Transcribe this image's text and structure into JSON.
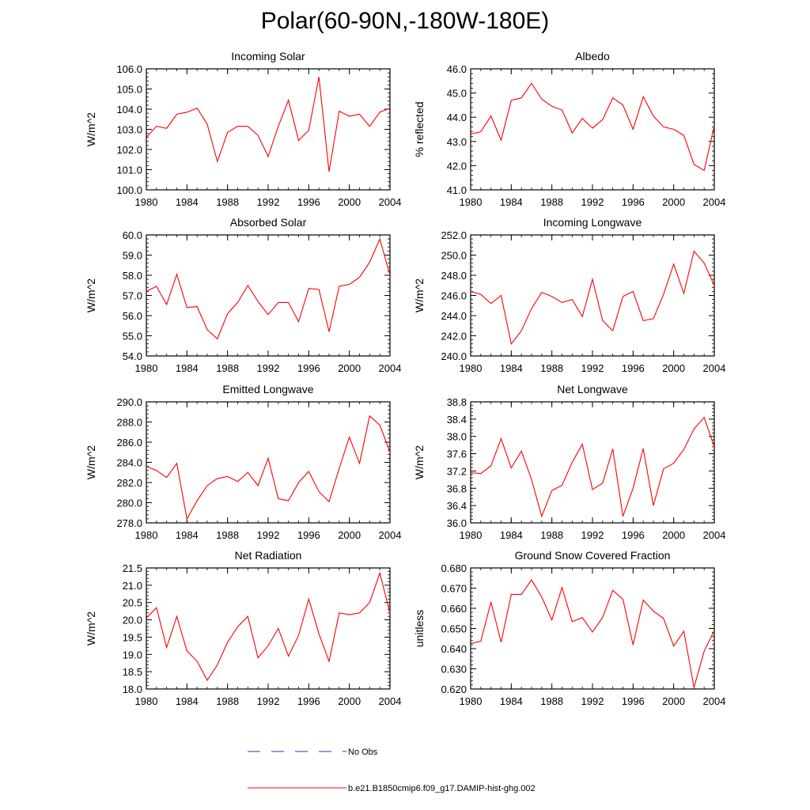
{
  "title": "Polar(60-90N,-180W-180E)",
  "colors": {
    "model": "#ff0000",
    "obs": "#3333aa",
    "axis": "#000000"
  },
  "legend": {
    "items": [
      {
        "label": "No Obs",
        "style": "dashed",
        "color": "#3333aa"
      },
      {
        "label": "b.e21.B1850cmip6.f09_g17.DAMIP-hist-ghg.002",
        "style": "solid",
        "color": "#ff0000"
      }
    ]
  },
  "chart_data": [
    {
      "type": "line",
      "title": "Incoming Solar",
      "xlabel": "",
      "ylabel": "W/m^2",
      "xlim": [
        1980,
        2004
      ],
      "ylim": [
        100,
        106
      ],
      "decimals": 1,
      "xticks": [
        1980,
        1984,
        1988,
        1992,
        1996,
        2000,
        2004
      ],
      "yticks": [
        100,
        101,
        102,
        103,
        104,
        105,
        106
      ],
      "x": [
        1980,
        1981,
        1982,
        1983,
        1984,
        1985,
        1986,
        1987,
        1988,
        1989,
        1990,
        1991,
        1992,
        1993,
        1994,
        1995,
        1996,
        1997,
        1998,
        1999,
        2000,
        2001,
        2002,
        2003,
        2004
      ],
      "series": [
        {
          "name": "b.e21.B1850cmip6.f09_g17.DAMIP-hist-ghg.002",
          "values": [
            102.6,
            103.15,
            103.05,
            103.75,
            103.85,
            104.05,
            103.25,
            101.4,
            102.85,
            103.15,
            103.15,
            102.7,
            101.65,
            103.15,
            104.45,
            102.45,
            102.95,
            105.6,
            100.9,
            103.9,
            103.65,
            103.75,
            103.15,
            103.85,
            104.05
          ]
        }
      ]
    },
    {
      "type": "line",
      "title": "Albedo",
      "xlabel": "",
      "ylabel": "% reflected",
      "xlim": [
        1980,
        2004
      ],
      "ylim": [
        41,
        46
      ],
      "decimals": 1,
      "xticks": [
        1980,
        1984,
        1988,
        1992,
        1996,
        2000,
        2004
      ],
      "yticks": [
        41,
        42,
        43,
        44,
        45,
        46
      ],
      "x": [
        1980,
        1981,
        1982,
        1983,
        1984,
        1985,
        1986,
        1987,
        1988,
        1989,
        1990,
        1991,
        1992,
        1993,
        1994,
        1995,
        1996,
        1997,
        1998,
        1999,
        2000,
        2001,
        2002,
        2003,
        2004
      ],
      "series": [
        {
          "name": "b.e21.B1850cmip6.f09_g17.DAMIP-hist-ghg.002",
          "values": [
            43.3,
            43.4,
            44.05,
            43.05,
            44.7,
            44.8,
            45.4,
            44.75,
            44.45,
            44.3,
            43.35,
            43.95,
            43.55,
            43.9,
            44.8,
            44.5,
            43.5,
            44.85,
            44.05,
            43.6,
            43.5,
            43.25,
            42.05,
            41.8,
            43.65
          ]
        }
      ]
    },
    {
      "type": "line",
      "title": "Absorbed Solar",
      "xlabel": "",
      "ylabel": "W/m^2",
      "xlim": [
        1980,
        2004
      ],
      "ylim": [
        54,
        60
      ],
      "decimals": 1,
      "xticks": [
        1980,
        1984,
        1988,
        1992,
        1996,
        2000,
        2004
      ],
      "yticks": [
        54,
        55,
        56,
        57,
        58,
        59,
        60
      ],
      "x": [
        1980,
        1981,
        1982,
        1983,
        1984,
        1985,
        1986,
        1987,
        1988,
        1989,
        1990,
        1991,
        1992,
        1993,
        1994,
        1995,
        1996,
        1997,
        1998,
        1999,
        2000,
        2001,
        2002,
        2003,
        2004
      ],
      "series": [
        {
          "name": "b.e21.B1850cmip6.f09_g17.DAMIP-hist-ghg.002",
          "values": [
            57.2,
            57.45,
            56.55,
            58.05,
            56.4,
            56.45,
            55.3,
            54.85,
            56.1,
            56.65,
            57.5,
            56.7,
            56.05,
            56.65,
            56.65,
            55.7,
            57.35,
            57.3,
            55.2,
            57.45,
            57.55,
            57.9,
            58.65,
            59.8,
            58.0
          ]
        }
      ]
    },
    {
      "type": "line",
      "title": "Incoming Longwave",
      "xlabel": "",
      "ylabel": "W/m^2",
      "xlim": [
        1980,
        2004
      ],
      "ylim": [
        240,
        252
      ],
      "decimals": 1,
      "xticks": [
        1980,
        1984,
        1988,
        1992,
        1996,
        2000,
        2004
      ],
      "yticks": [
        240,
        242,
        244,
        246,
        248,
        250,
        252
      ],
      "x": [
        1980,
        1981,
        1982,
        1983,
        1984,
        1985,
        1986,
        1987,
        1988,
        1989,
        1990,
        1991,
        1992,
        1993,
        1994,
        1995,
        1996,
        1997,
        1998,
        1999,
        2000,
        2001,
        2002,
        2003,
        2004
      ],
      "series": [
        {
          "name": "b.e21.B1850cmip6.f09_g17.DAMIP-hist-ghg.002",
          "values": [
            246.4,
            246.1,
            245.2,
            246.0,
            241.2,
            242.5,
            244.7,
            246.3,
            245.9,
            245.3,
            245.6,
            243.9,
            247.6,
            243.5,
            242.5,
            245.9,
            246.4,
            243.5,
            243.7,
            246.1,
            249.1,
            246.2,
            250.4,
            249.2,
            247.0
          ]
        }
      ]
    },
    {
      "type": "line",
      "title": "Emitted Longwave",
      "xlabel": "",
      "ylabel": "W/m^2",
      "xlim": [
        1980,
        2004
      ],
      "ylim": [
        278,
        290
      ],
      "decimals": 1,
      "xticks": [
        1980,
        1984,
        1988,
        1992,
        1996,
        2000,
        2004
      ],
      "yticks": [
        278,
        280,
        282,
        284,
        286,
        288,
        290
      ],
      "x": [
        1980,
        1981,
        1982,
        1983,
        1984,
        1985,
        1986,
        1987,
        1988,
        1989,
        1990,
        1991,
        1992,
        1993,
        1994,
        1995,
        1996,
        1997,
        1998,
        1999,
        2000,
        2001,
        2002,
        2003,
        2004
      ],
      "series": [
        {
          "name": "b.e21.B1850cmip6.f09_g17.DAMIP-hist-ghg.002",
          "values": [
            283.6,
            283.2,
            282.5,
            283.9,
            278.4,
            280.2,
            281.7,
            282.4,
            282.6,
            282.1,
            283.0,
            281.7,
            284.4,
            280.4,
            280.2,
            282.0,
            283.1,
            281.1,
            280.1,
            283.4,
            286.5,
            283.9,
            288.6,
            287.7,
            285.0
          ]
        }
      ]
    },
    {
      "type": "line",
      "title": "Net Longwave",
      "xlabel": "",
      "ylabel": "W/m^2",
      "xlim": [
        1980,
        2004
      ],
      "ylim": [
        36,
        38.8
      ],
      "decimals": 1,
      "xticks": [
        1980,
        1984,
        1988,
        1992,
        1996,
        2000,
        2004
      ],
      "yticks": [
        36.0,
        36.4,
        36.8,
        37.2,
        37.6,
        38.0,
        38.4,
        38.8
      ],
      "x": [
        1980,
        1981,
        1982,
        1983,
        1984,
        1985,
        1986,
        1987,
        1988,
        1989,
        1990,
        1991,
        1992,
        1993,
        1994,
        1995,
        1996,
        1997,
        1998,
        1999,
        2000,
        2001,
        2002,
        2003,
        2004
      ],
      "series": [
        {
          "name": "b.e21.B1850cmip6.f09_g17.DAMIP-hist-ghg.002",
          "values": [
            37.16,
            37.14,
            37.32,
            37.95,
            37.27,
            37.66,
            37.0,
            36.15,
            36.75,
            36.87,
            37.4,
            37.82,
            36.77,
            36.92,
            37.71,
            36.15,
            36.8,
            37.72,
            36.4,
            37.25,
            37.38,
            37.7,
            38.17,
            38.44,
            37.76
          ]
        }
      ]
    },
    {
      "type": "line",
      "title": "Net Radiation",
      "xlabel": "",
      "ylabel": "W/m^2",
      "xlim": [
        1980,
        2004
      ],
      "ylim": [
        18,
        21.5
      ],
      "decimals": 1,
      "xticks": [
        1980,
        1984,
        1988,
        1992,
        1996,
        2000,
        2004
      ],
      "yticks": [
        18.0,
        18.5,
        19.0,
        19.5,
        20.0,
        20.5,
        21.0,
        21.5
      ],
      "x": [
        1980,
        1981,
        1982,
        1983,
        1984,
        1985,
        1986,
        1987,
        1988,
        1989,
        1990,
        1991,
        1992,
        1993,
        1994,
        1995,
        1996,
        1997,
        1998,
        1999,
        2000,
        2001,
        2002,
        2003,
        2004
      ],
      "series": [
        {
          "name": "b.e21.B1850cmip6.f09_g17.DAMIP-hist-ghg.002",
          "values": [
            20.05,
            20.35,
            19.2,
            20.1,
            19.1,
            18.8,
            18.25,
            18.7,
            19.35,
            19.8,
            20.1,
            18.9,
            19.25,
            19.75,
            18.95,
            19.55,
            20.6,
            19.6,
            18.8,
            20.2,
            20.15,
            20.2,
            20.5,
            21.35,
            20.2
          ]
        }
      ]
    },
    {
      "type": "line",
      "title": "Ground Snow Covered Fraction",
      "xlabel": "",
      "ylabel": "unitless",
      "xlim": [
        1980,
        2004
      ],
      "ylim": [
        0.62,
        0.68
      ],
      "decimals": 3,
      "xticks": [
        1980,
        1984,
        1988,
        1992,
        1996,
        2000,
        2004
      ],
      "yticks": [
        0.62,
        0.63,
        0.64,
        0.65,
        0.66,
        0.67,
        0.68
      ],
      "x": [
        1980,
        1981,
        1982,
        1983,
        1984,
        1985,
        1986,
        1987,
        1988,
        1989,
        1990,
        1991,
        1992,
        1993,
        1994,
        1995,
        1996,
        1997,
        1998,
        1999,
        2000,
        2001,
        2002,
        2003,
        2004
      ],
      "series": [
        {
          "name": "b.e21.B1850cmip6.f09_g17.DAMIP-hist-ghg.002",
          "values": [
            0.6425,
            0.6437,
            0.6631,
            0.6432,
            0.6669,
            0.6669,
            0.6741,
            0.6656,
            0.6542,
            0.6703,
            0.6534,
            0.6554,
            0.6482,
            0.6555,
            0.6689,
            0.6645,
            0.6418,
            0.6641,
            0.6586,
            0.655,
            0.6413,
            0.6486,
            0.6207,
            0.6387,
            0.649
          ]
        }
      ]
    }
  ]
}
